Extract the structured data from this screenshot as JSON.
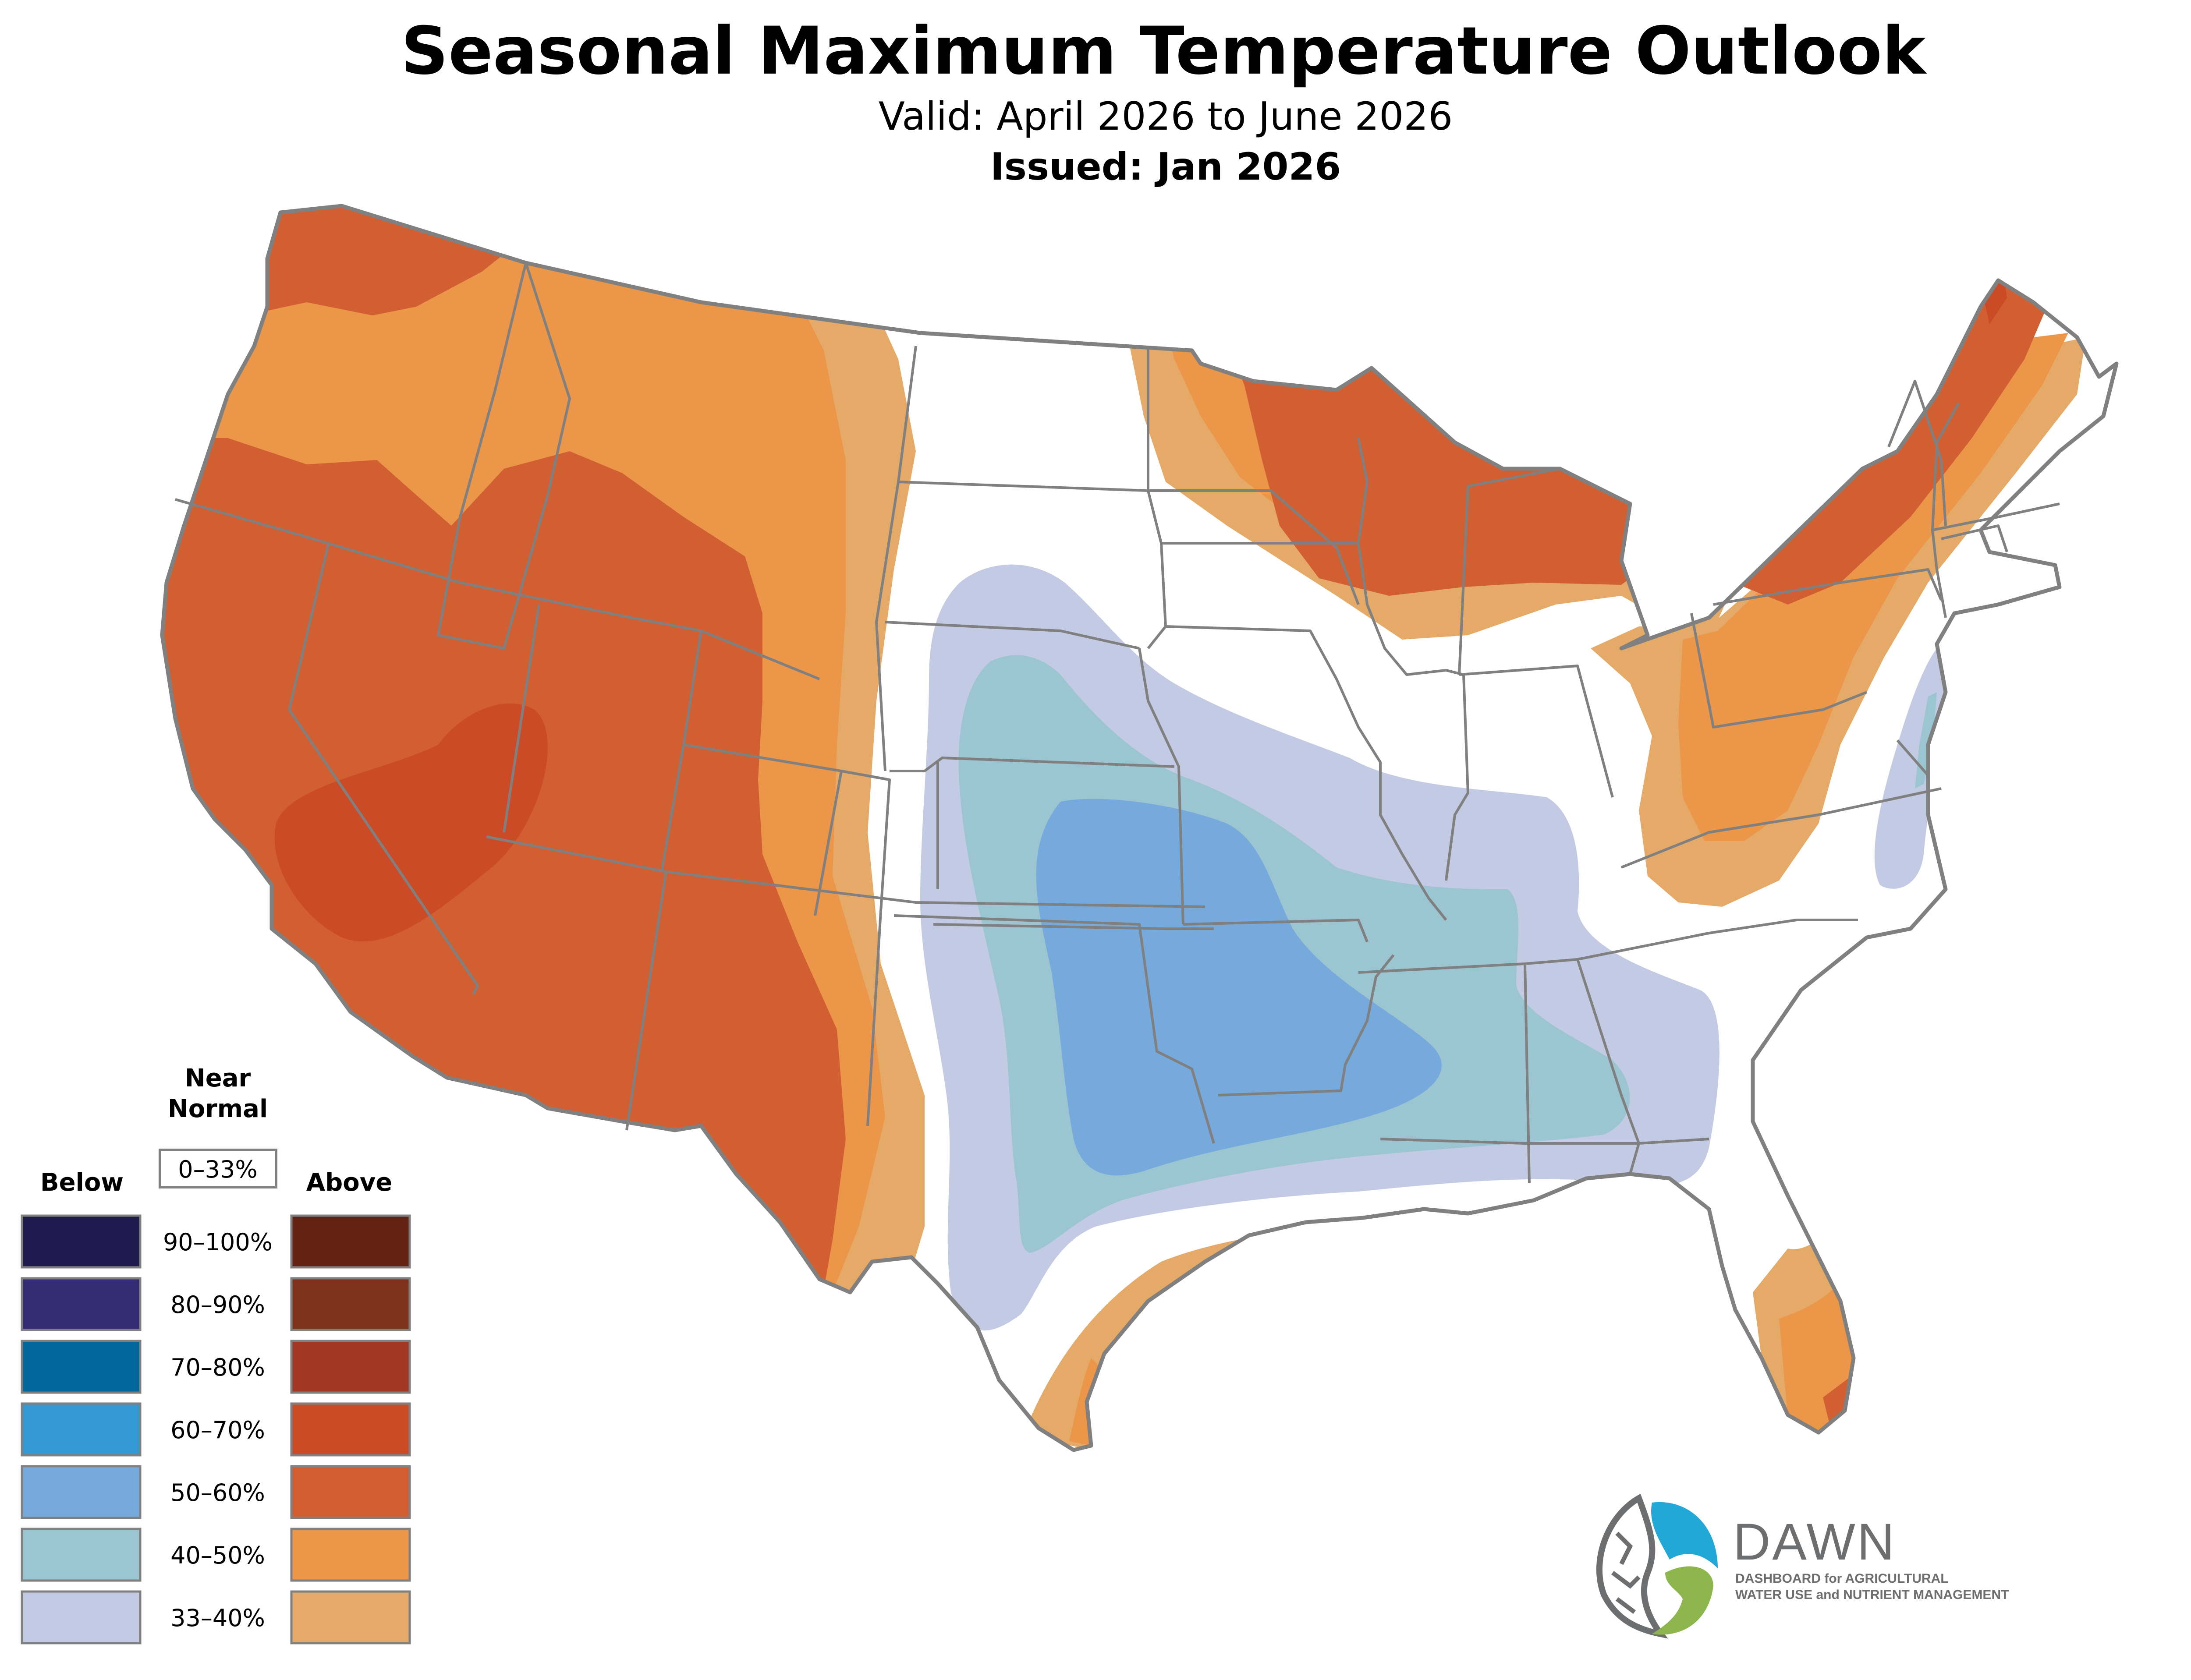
{
  "header": {
    "title": "Seasonal Maximum Temperature Outlook",
    "valid": "Valid: April 2026 to June 2026",
    "issued": "Issued: Jan 2026"
  },
  "legend": {
    "below_label": "Below",
    "near_normal_label_line1": "Near",
    "near_normal_label_line2": "Normal",
    "near_normal_range": "0–33%",
    "above_label": "Above",
    "rows": [
      {
        "range": "90–100%",
        "below_color": "#1f1a4f",
        "above_color": "#632310"
      },
      {
        "range": "80–90%",
        "below_color": "#342c73",
        "above_color": "#7e341c"
      },
      {
        "range": "70–80%",
        "below_color": "#01669c",
        "above_color": "#a33525"
      },
      {
        "range": "60–70%",
        "below_color": "#3399d4",
        "above_color": "#cb4b27"
      },
      {
        "range": "50–60%",
        "below_color": "#76aadc",
        "above_color": "#d25f32"
      },
      {
        "range": "40–50%",
        "below_color": "#9ac5d1",
        "above_color": "#eb9648"
      },
      {
        "range": "33–40%",
        "below_color": "#c3cae4",
        "above_color": "#e6aa68"
      }
    ]
  },
  "map": {
    "border_color": "#808080",
    "regions": [
      {
        "name": "west",
        "category": "Above",
        "range": "50–60%"
      },
      {
        "name": "great-basin-core",
        "category": "Above",
        "range": "60–70%"
      },
      {
        "name": "rockies-band",
        "category": "Above",
        "range": "40–50%"
      },
      {
        "name": "plains-edge",
        "category": "Above",
        "range": "33–40%"
      },
      {
        "name": "upper-midwest",
        "category": "Above",
        "range": "50–60%"
      },
      {
        "name": "northeast",
        "category": "Above",
        "range": "50–60%"
      },
      {
        "name": "south-central",
        "category": "Below",
        "range": "50–60%"
      },
      {
        "name": "gulf-coast",
        "category": "Above",
        "range": "33–40%"
      },
      {
        "name": "florida",
        "category": "Above",
        "range": "40–50%"
      }
    ]
  },
  "logo": {
    "name": "DAWN",
    "tagline_line1": "DASHBOARD for AGRICULTURAL",
    "tagline_line2": "WATER USE and NUTRIENT MANAGEMENT",
    "blue": "#22a8d6",
    "green": "#8db64c",
    "gray": "#6d6e70"
  }
}
